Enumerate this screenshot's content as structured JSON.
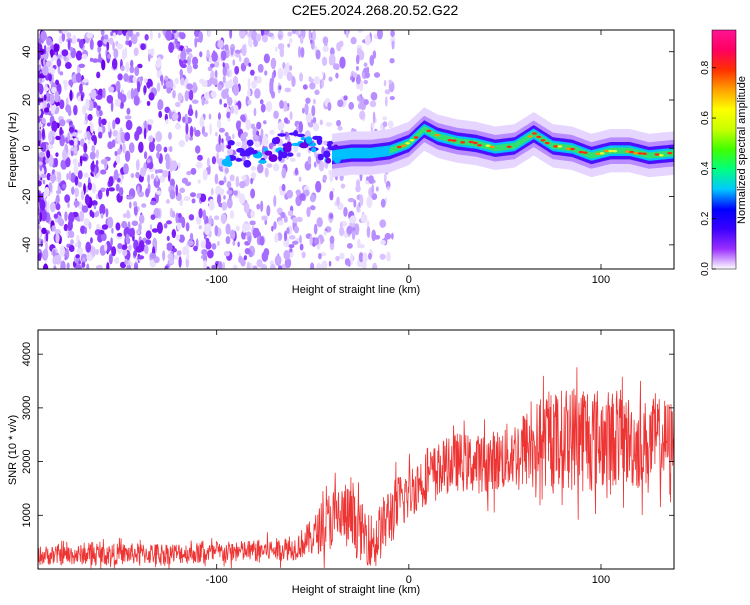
{
  "title": "C2E5.2024.268.20.52.G22",
  "chart_data": [
    {
      "type": "heatmap",
      "title": "C2E5.2024.268.20.52.G22",
      "xlabel": "Height of straight line (km)",
      "ylabel": "Frequency (Hz)",
      "xlim": [
        -193,
        138
      ],
      "ylim": [
        -50,
        49
      ],
      "xticks": [
        -100,
        0,
        100
      ],
      "xtick_labels": [
        "-100",
        "0",
        "100"
      ],
      "yticks": [
        -40,
        -20,
        0,
        20,
        40
      ],
      "ytick_labels": [
        "-40",
        "-20",
        "0",
        "20",
        "40"
      ],
      "colorbar": {
        "label": "Normalized spectral amplitude",
        "range": [
          0.0,
          0.95
        ],
        "ticks": [
          0.0,
          0.2,
          0.4,
          0.6,
          0.8
        ],
        "tick_labels": [
          "0.0",
          "0.2",
          "0.4",
          "0.6",
          "0.8"
        ],
        "colors": [
          "#ffffff",
          "#9b30ff",
          "#3b00ff",
          "#0000ff",
          "#00c8ff",
          "#00ff80",
          "#40ff00",
          "#c8ff00",
          "#ffff00",
          "#ffa000",
          "#ff3000",
          "#ff0060",
          "#ff1493"
        ]
      },
      "ridge": {
        "x": [
          -90,
          -70,
          -55,
          -40,
          -30,
          -20,
          -10,
          0,
          8,
          15,
          25,
          35,
          45,
          55,
          65,
          75,
          85,
          95,
          105,
          115,
          125,
          138
        ],
        "frequency": [
          -2,
          -1,
          5,
          -3,
          -2,
          -2,
          -1,
          2,
          8,
          5,
          3,
          2,
          0,
          1,
          6,
          1,
          0,
          -3,
          -1,
          -1,
          -3,
          -2
        ]
      }
    },
    {
      "type": "line",
      "xlabel": "Height of straight line (km)",
      "ylabel": "SNR (10 * v/v)",
      "xlim": [
        -193,
        138
      ],
      "ylim": [
        0,
        4450
      ],
      "xticks": [
        -100,
        0,
        100
      ],
      "xtick_labels": [
        "-100",
        "0",
        "100"
      ],
      "yticks": [
        1000,
        2000,
        3000,
        4000
      ],
      "ytick_labels": [
        "1000",
        "2000",
        "3000",
        "4000"
      ],
      "series": [
        {
          "name": "SNR",
          "color": "#ee3333",
          "x": [
            -193,
            -150,
            -100,
            -60,
            -50,
            -40,
            -33,
            -25,
            -18,
            -10,
            -3,
            5,
            15,
            25,
            35,
            45,
            55,
            65,
            75,
            85,
            90,
            100,
            110,
            120,
            130,
            138
          ],
          "mean": [
            250,
            280,
            300,
            380,
            600,
            950,
            1000,
            700,
            500,
            1000,
            1300,
            1600,
            1850,
            2000,
            1950,
            2000,
            2150,
            2300,
            2400,
            2450,
            2500,
            2400,
            2450,
            2300,
            2400,
            2350
          ],
          "spread": [
            180,
            200,
            200,
            220,
            350,
            600,
            650,
            550,
            500,
            600,
            550,
            500,
            500,
            550,
            550,
            600,
            650,
            800,
            900,
            1000,
            1100,
            950,
            900,
            850,
            800,
            800
          ]
        }
      ]
    }
  ]
}
